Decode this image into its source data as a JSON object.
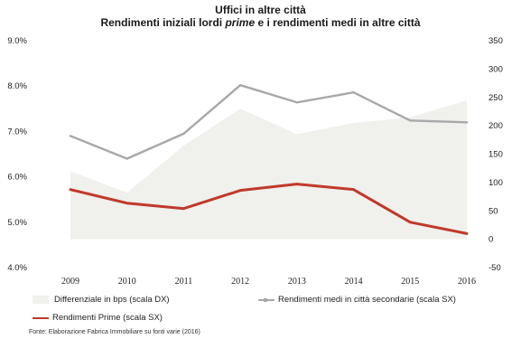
{
  "chart_data": {
    "type": "line",
    "title": "Uffici in altre città",
    "subtitle_parts": [
      "Rendimenti iniziali lordi ",
      "prime",
      " e i rendimenti medi in altre città"
    ],
    "categories": [
      "2009",
      "2010",
      "2011",
      "2012",
      "2013",
      "2014",
      "2015",
      "2016"
    ],
    "y_left": {
      "ticks": [
        "9.0%",
        "8.0%",
        "7.0%",
        "6.0%",
        "5.0%",
        "4.0%"
      ],
      "range": [
        4.0,
        9.0
      ]
    },
    "y_right": {
      "ticks": [
        "350",
        "300",
        "250",
        "200",
        "150",
        "100",
        "50",
        "0",
        "-50"
      ],
      "range": [
        -50,
        350
      ]
    },
    "series": [
      {
        "name": "Differenziale in bps (scala DX)",
        "kind": "area",
        "axis": "right",
        "values": [
          120,
          82,
          165,
          230,
          185,
          205,
          215,
          245
        ],
        "color": "#f0f0ec"
      },
      {
        "name": "Rendimenti medi in città secondarie (scala SX)",
        "kind": "line",
        "axis": "left",
        "values": [
          6.9,
          6.4,
          6.95,
          8.02,
          7.64,
          7.86,
          7.24,
          7.2
        ],
        "color": "#a8a8a8"
      },
      {
        "name": "Rendimenti Prime (scala SX)",
        "kind": "line",
        "axis": "left",
        "values": [
          5.72,
          5.42,
          5.3,
          5.7,
          5.84,
          5.72,
          5.0,
          4.75
        ],
        "color": "#c0392b"
      }
    ],
    "legend_placement": "bottom",
    "grid": false
  },
  "source": "Fonte: Elaborazione Fabrica Immobiliare su fonti varie (2016)"
}
